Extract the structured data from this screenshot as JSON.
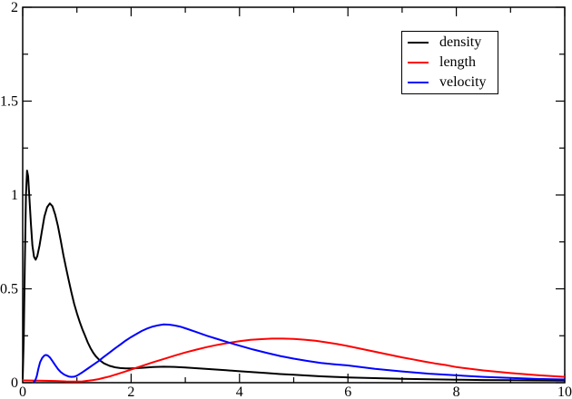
{
  "window": {
    "background": "#ffffff",
    "frame_color": "#000000"
  },
  "chart_data": {
    "type": "line",
    "title": "",
    "xlabel": "",
    "ylabel": "",
    "xlim": [
      0,
      10
    ],
    "ylim": [
      0,
      2
    ],
    "grid": false,
    "legend_position": "top-right",
    "x_ticks_major": {
      "values": [
        0,
        2,
        4,
        6,
        8,
        10
      ],
      "labels": [
        "0",
        "2",
        "4",
        "6",
        "8",
        "10"
      ]
    },
    "x_ticks_minor": [
      1,
      3,
      5,
      7,
      9
    ],
    "y_ticks_major": {
      "values": [
        0,
        0.5,
        1,
        1.5,
        2
      ],
      "labels": [
        "0",
        "0.5",
        "1",
        "1.5",
        "2"
      ]
    },
    "y_ticks_minor": [
      0.25,
      0.75,
      1.25,
      1.75
    ],
    "series": [
      {
        "name": "density",
        "color": "#000000",
        "points": [
          [
            0,
            0.02
          ],
          [
            0.02,
            0.25
          ],
          [
            0.04,
            0.65
          ],
          [
            0.06,
            1.0
          ],
          [
            0.08,
            1.13
          ],
          [
            0.1,
            1.1
          ],
          [
            0.12,
            1.0
          ],
          [
            0.15,
            0.85
          ],
          [
            0.18,
            0.73
          ],
          [
            0.21,
            0.67
          ],
          [
            0.24,
            0.655
          ],
          [
            0.27,
            0.675
          ],
          [
            0.31,
            0.73
          ],
          [
            0.35,
            0.8
          ],
          [
            0.4,
            0.885
          ],
          [
            0.45,
            0.935
          ],
          [
            0.5,
            0.955
          ],
          [
            0.55,
            0.94
          ],
          [
            0.6,
            0.895
          ],
          [
            0.65,
            0.835
          ],
          [
            0.7,
            0.76
          ],
          [
            0.75,
            0.68
          ],
          [
            0.8,
            0.61
          ],
          [
            0.85,
            0.545
          ],
          [
            0.9,
            0.48
          ],
          [
            0.95,
            0.42
          ],
          [
            1.0,
            0.37
          ],
          [
            1.05,
            0.325
          ],
          [
            1.1,
            0.285
          ],
          [
            1.15,
            0.25
          ],
          [
            1.2,
            0.215
          ],
          [
            1.25,
            0.185
          ],
          [
            1.3,
            0.16
          ],
          [
            1.35,
            0.14
          ],
          [
            1.4,
            0.125
          ],
          [
            1.45,
            0.113
          ],
          [
            1.5,
            0.103
          ],
          [
            1.6,
            0.09
          ],
          [
            1.7,
            0.082
          ],
          [
            1.8,
            0.078
          ],
          [
            1.9,
            0.076
          ],
          [
            2.0,
            0.076
          ],
          [
            2.2,
            0.079
          ],
          [
            2.4,
            0.083
          ],
          [
            2.6,
            0.085
          ],
          [
            2.8,
            0.084
          ],
          [
            3.0,
            0.081
          ],
          [
            3.25,
            0.076
          ],
          [
            3.5,
            0.071
          ],
          [
            3.75,
            0.066
          ],
          [
            4.0,
            0.061
          ],
          [
            4.25,
            0.056
          ],
          [
            4.5,
            0.051
          ],
          [
            4.75,
            0.046
          ],
          [
            5.0,
            0.042
          ],
          [
            5.25,
            0.038
          ],
          [
            5.5,
            0.034
          ],
          [
            5.75,
            0.031
          ],
          [
            6.0,
            0.028
          ],
          [
            6.5,
            0.024
          ],
          [
            7.0,
            0.021
          ],
          [
            7.5,
            0.018
          ],
          [
            8.0,
            0.016
          ],
          [
            8.5,
            0.014
          ],
          [
            9.0,
            0.013
          ],
          [
            9.5,
            0.012
          ],
          [
            10.0,
            0.011
          ]
        ]
      },
      {
        "name": "length",
        "color": "#ff0000",
        "points": [
          [
            0,
            0.012
          ],
          [
            0.3,
            0.011
          ],
          [
            0.6,
            0.009
          ],
          [
            0.8,
            0.007
          ],
          [
            1.0,
            0.006
          ],
          [
            1.1,
            0.007
          ],
          [
            1.2,
            0.01
          ],
          [
            1.3,
            0.014
          ],
          [
            1.4,
            0.019
          ],
          [
            1.5,
            0.026
          ],
          [
            1.6,
            0.033
          ],
          [
            1.7,
            0.042
          ],
          [
            1.8,
            0.051
          ],
          [
            1.9,
            0.06
          ],
          [
            2.0,
            0.07
          ],
          [
            2.2,
            0.089
          ],
          [
            2.4,
            0.108
          ],
          [
            2.6,
            0.126
          ],
          [
            2.8,
            0.144
          ],
          [
            3.0,
            0.161
          ],
          [
            3.2,
            0.176
          ],
          [
            3.4,
            0.19
          ],
          [
            3.6,
            0.202
          ],
          [
            3.8,
            0.212
          ],
          [
            4.0,
            0.221
          ],
          [
            4.2,
            0.228
          ],
          [
            4.4,
            0.232
          ],
          [
            4.6,
            0.235
          ],
          [
            4.8,
            0.235
          ],
          [
            5.0,
            0.233
          ],
          [
            5.2,
            0.229
          ],
          [
            5.4,
            0.223
          ],
          [
            5.6,
            0.215
          ],
          [
            5.8,
            0.206
          ],
          [
            6.0,
            0.195
          ],
          [
            6.2,
            0.183
          ],
          [
            6.4,
            0.171
          ],
          [
            6.6,
            0.159
          ],
          [
            6.8,
            0.147
          ],
          [
            7.0,
            0.135
          ],
          [
            7.2,
            0.124
          ],
          [
            7.4,
            0.113
          ],
          [
            7.6,
            0.103
          ],
          [
            7.8,
            0.094
          ],
          [
            8.0,
            0.083
          ],
          [
            8.5,
            0.065
          ],
          [
            9.0,
            0.051
          ],
          [
            9.5,
            0.04
          ],
          [
            10.0,
            0.031
          ]
        ]
      },
      {
        "name": "velocity",
        "color": "#0000ff",
        "points": [
          [
            0.2,
            0.002
          ],
          [
            0.23,
            0.01
          ],
          [
            0.26,
            0.035
          ],
          [
            0.29,
            0.075
          ],
          [
            0.32,
            0.108
          ],
          [
            0.36,
            0.132
          ],
          [
            0.4,
            0.145
          ],
          [
            0.43,
            0.148
          ],
          [
            0.46,
            0.145
          ],
          [
            0.5,
            0.135
          ],
          [
            0.55,
            0.115
          ],
          [
            0.6,
            0.093
          ],
          [
            0.65,
            0.073
          ],
          [
            0.7,
            0.057
          ],
          [
            0.75,
            0.046
          ],
          [
            0.8,
            0.038
          ],
          [
            0.85,
            0.033
          ],
          [
            0.9,
            0.031
          ],
          [
            0.95,
            0.032
          ],
          [
            1.0,
            0.037
          ],
          [
            1.1,
            0.055
          ],
          [
            1.2,
            0.075
          ],
          [
            1.3,
            0.095
          ],
          [
            1.4,
            0.115
          ],
          [
            1.5,
            0.138
          ],
          [
            1.6,
            0.16
          ],
          [
            1.7,
            0.182
          ],
          [
            1.8,
            0.203
          ],
          [
            1.9,
            0.224
          ],
          [
            2.0,
            0.243
          ],
          [
            2.1,
            0.26
          ],
          [
            2.2,
            0.276
          ],
          [
            2.3,
            0.289
          ],
          [
            2.4,
            0.299
          ],
          [
            2.5,
            0.306
          ],
          [
            2.6,
            0.31
          ],
          [
            2.7,
            0.309
          ],
          [
            2.8,
            0.305
          ],
          [
            2.9,
            0.299
          ],
          [
            3.0,
            0.29
          ],
          [
            3.2,
            0.27
          ],
          [
            3.4,
            0.25
          ],
          [
            3.6,
            0.232
          ],
          [
            3.8,
            0.214
          ],
          [
            4.0,
            0.197
          ],
          [
            4.25,
            0.177
          ],
          [
            4.5,
            0.159
          ],
          [
            4.75,
            0.142
          ],
          [
            5.0,
            0.128
          ],
          [
            5.25,
            0.116
          ],
          [
            5.5,
            0.105
          ],
          [
            5.75,
            0.098
          ],
          [
            6.0,
            0.092
          ],
          [
            6.5,
            0.074
          ],
          [
            7.0,
            0.06
          ],
          [
            7.5,
            0.048
          ],
          [
            8.0,
            0.039
          ],
          [
            8.5,
            0.031
          ],
          [
            9.0,
            0.025
          ],
          [
            9.5,
            0.02
          ],
          [
            10.0,
            0.017
          ]
        ]
      }
    ]
  }
}
